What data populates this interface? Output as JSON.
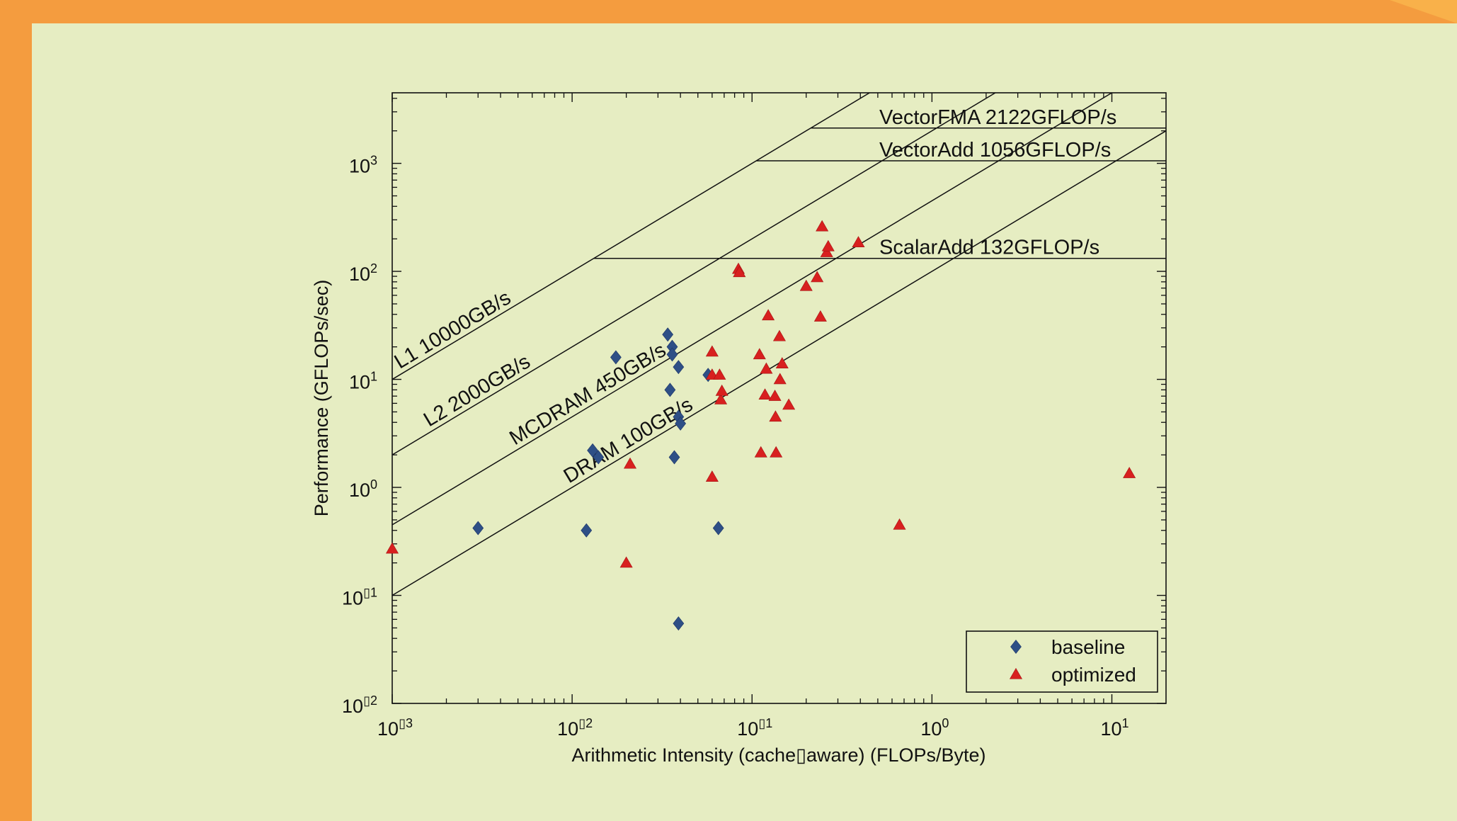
{
  "colors": {
    "frame": "#f49c3f",
    "panel": "#e6edc2",
    "baseline": "#2e4f86",
    "optimized": "#d8201f",
    "line": "#111111"
  },
  "chart_data": {
    "type": "scatter",
    "xscale": "log",
    "yscale": "log",
    "xlabel": "Arithmetic Intensity (cache▯aware) (FLOPs/Byte)",
    "ylabel": "Performance (GFLOPs/sec)",
    "xlim": [
      0.001,
      20
    ],
    "ylim": [
      0.01,
      4500
    ],
    "x_ticks": [
      {
        "value": 0.001,
        "base": "10",
        "exp": "▯3"
      },
      {
        "value": 0.01,
        "base": "10",
        "exp": "▯2"
      },
      {
        "value": 0.1,
        "base": "10",
        "exp": "▯1"
      },
      {
        "value": 1,
        "base": "10",
        "exp": "0"
      },
      {
        "value": 10,
        "base": "10",
        "exp": "1"
      }
    ],
    "y_ticks": [
      {
        "value": 0.01,
        "base": "10",
        "exp": "▯2"
      },
      {
        "value": 0.1,
        "base": "10",
        "exp": "▯1"
      },
      {
        "value": 1,
        "base": "10",
        "exp": "0"
      },
      {
        "value": 10,
        "base": "10",
        "exp": "1"
      },
      {
        "value": 100,
        "base": "10",
        "exp": "2"
      },
      {
        "value": 1000,
        "base": "10",
        "exp": "3"
      }
    ],
    "rooflines": {
      "bandwidth": [
        {
          "name": "L1 10000GB/s",
          "value": 10000
        },
        {
          "name": "L2 2000GB/s",
          "value": 2000
        },
        {
          "name": "MCDRAM 450GB/s",
          "value": 450
        },
        {
          "name": "DRAM 100GB/s",
          "value": 100
        }
      ],
      "compute": [
        {
          "name": "VectorFMA 2122GFLOP/s",
          "value": 2122
        },
        {
          "name": "VectorAdd 1056GFLOP/s",
          "value": 1056
        },
        {
          "name": "ScalarAdd 132GFLOP/s",
          "value": 132
        }
      ]
    },
    "legend": {
      "position": "bottom-right",
      "entries": [
        "baseline",
        "optimized"
      ]
    },
    "series": [
      {
        "name": "baseline",
        "marker": "diamond",
        "points": [
          [
            0.003,
            0.42
          ],
          [
            0.012,
            0.4
          ],
          [
            0.013,
            2.2
          ],
          [
            0.014,
            1.9
          ],
          [
            0.0175,
            16
          ],
          [
            0.034,
            26
          ],
          [
            0.035,
            8
          ],
          [
            0.036,
            20
          ],
          [
            0.036,
            17
          ],
          [
            0.037,
            1.9
          ],
          [
            0.039,
            13
          ],
          [
            0.039,
            4.5
          ],
          [
            0.04,
            3.9
          ],
          [
            0.057,
            11
          ],
          [
            0.065,
            0.42
          ],
          [
            0.039,
            0.055
          ]
        ]
      },
      {
        "name": "optimized",
        "marker": "triangle",
        "points": [
          [
            0.001,
            0.27
          ],
          [
            0.02,
            0.2
          ],
          [
            0.021,
            1.65
          ],
          [
            0.06,
            18
          ],
          [
            0.06,
            11
          ],
          [
            0.06,
            1.25
          ],
          [
            0.066,
            11
          ],
          [
            0.067,
            6.5
          ],
          [
            0.068,
            7.8
          ],
          [
            0.084,
            105
          ],
          [
            0.085,
            98
          ],
          [
            0.11,
            17
          ],
          [
            0.112,
            2.1
          ],
          [
            0.118,
            7.2
          ],
          [
            0.12,
            12.5
          ],
          [
            0.123,
            39
          ],
          [
            0.134,
            7
          ],
          [
            0.135,
            4.5
          ],
          [
            0.136,
            2.1
          ],
          [
            0.142,
            25
          ],
          [
            0.143,
            10
          ],
          [
            0.147,
            14
          ],
          [
            0.16,
            5.8
          ],
          [
            0.2,
            73
          ],
          [
            0.23,
            88
          ],
          [
            0.24,
            38
          ],
          [
            0.245,
            260
          ],
          [
            0.26,
            150
          ],
          [
            0.265,
            170
          ],
          [
            0.39,
            185
          ],
          [
            0.66,
            0.45
          ],
          [
            12.5,
            1.35
          ]
        ]
      }
    ]
  }
}
